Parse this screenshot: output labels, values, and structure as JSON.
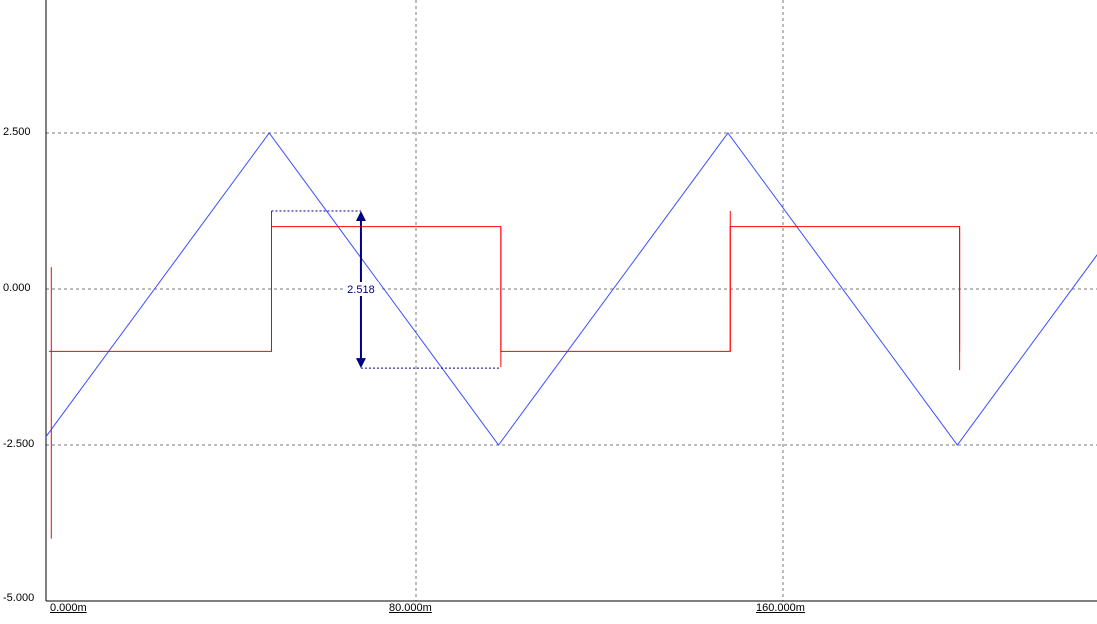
{
  "chart_data": {
    "type": "line",
    "title": "",
    "xlabel": "",
    "ylabel": "",
    "xlim": [
      -2.0,
      188.0
    ],
    "ylim": [
      -5.0,
      5.0
    ],
    "grid": true,
    "y_ticks": [
      {
        "value": 2.5,
        "label": "2.500"
      },
      {
        "value": 0.0,
        "label": "0.000"
      },
      {
        "value": -2.5,
        "label": "-2.500"
      },
      {
        "value": -5.0,
        "label": "-5.000"
      }
    ],
    "x_ticks": [
      {
        "value": 0.0,
        "label": "0.000m"
      },
      {
        "value": 80.0,
        "label": "80.000m"
      },
      {
        "value": 160.0,
        "label": "160.000m"
      }
    ],
    "series": [
      {
        "color": "#3a4dff",
        "style": "triangle",
        "x": [
          -2.0,
          48.0,
          98.0,
          148.0,
          198.0,
          248.0
        ],
        "y": [
          -2.5,
          2.5,
          -2.5,
          2.5,
          -2.5,
          2.5
        ]
      },
      {
        "color": "#ff0000",
        "style": "square",
        "x": [
          0.0,
          48.5,
          48.5,
          98.5,
          98.5,
          148.5,
          148.5,
          198.5,
          198.5
        ],
        "y": [
          -1.0,
          -1.0,
          1.0,
          1.0,
          -1.0,
          -1.0,
          1.0,
          1.0,
          -1.0
        ],
        "spikes": [
          {
            "x": 0.5,
            "y_high": 0.35,
            "y_low": -4.0
          },
          {
            "x": 48.5,
            "y_high": 1.25,
            "y_low": -1.0
          },
          {
            "x": 98.5,
            "y_high": 1.0,
            "y_low": -1.25
          },
          {
            "x": 148.5,
            "y_high": 1.25,
            "y_low": -1.0
          },
          {
            "x": 198.5,
            "y_high": 1.0,
            "y_low": -1.3
          }
        ]
      }
    ],
    "measurement": {
      "label": "2.518",
      "y_top": 1.25,
      "y_bottom": -1.268,
      "x": 68.0,
      "x_top_start": 48.5,
      "x_bottom_start": 68.0,
      "x_top_end": 68.0,
      "x_bottom_end": 98.5,
      "color": "#000080"
    }
  }
}
